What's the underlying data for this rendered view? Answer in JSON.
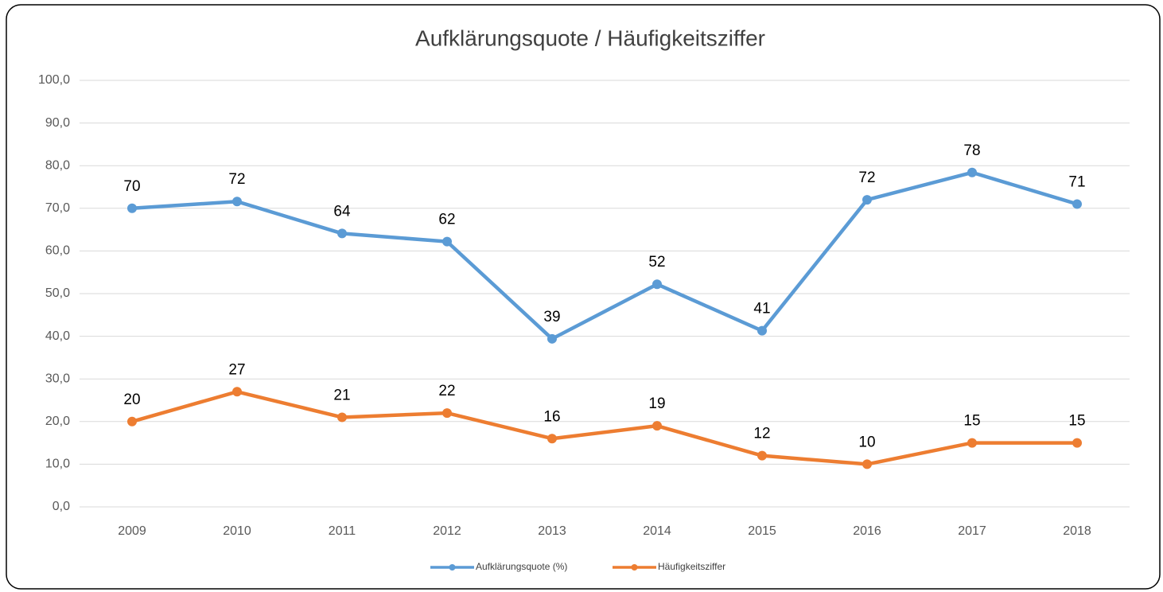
{
  "chart_data": {
    "type": "line",
    "title": "Aufklärungsquote / Häufigkeitsziffer",
    "categories": [
      "2009",
      "2010",
      "2011",
      "2012",
      "2013",
      "2014",
      "2015",
      "2016",
      "2017",
      "2018"
    ],
    "series": [
      {
        "name": "Aufklärungsquote (%)",
        "color": "#5b9bd5",
        "values": [
          70.0,
          71.6,
          64.1,
          62.2,
          39.4,
          52.2,
          41.3,
          72.0,
          78.4,
          71.0
        ],
        "value_labels": [
          "70",
          "72",
          "64",
          "62",
          "39",
          "52",
          "41",
          "72",
          "78",
          "71"
        ]
      },
      {
        "name": "Häufigkeitsziffer",
        "color": "#ed7d31",
        "values": [
          20,
          27,
          21,
          22,
          16,
          19,
          12,
          10,
          15,
          15
        ]
      }
    ],
    "ylim": [
      0,
      100
    ],
    "yticks": [
      {
        "value": 0,
        "label": "0,0"
      },
      {
        "value": 10,
        "label": "10,0"
      },
      {
        "value": 20,
        "label": "20,0"
      },
      {
        "value": 30,
        "label": "30,0"
      },
      {
        "value": 40,
        "label": "40,0"
      },
      {
        "value": 50,
        "label": "50,0"
      },
      {
        "value": 60,
        "label": "60,0"
      },
      {
        "value": 70,
        "label": "70,0"
      },
      {
        "value": 80,
        "label": "80,0"
      },
      {
        "value": 90,
        "label": "90,0"
      },
      {
        "value": 100,
        "label": "100,0"
      }
    ],
    "grid": true,
    "legend": "bottom"
  }
}
